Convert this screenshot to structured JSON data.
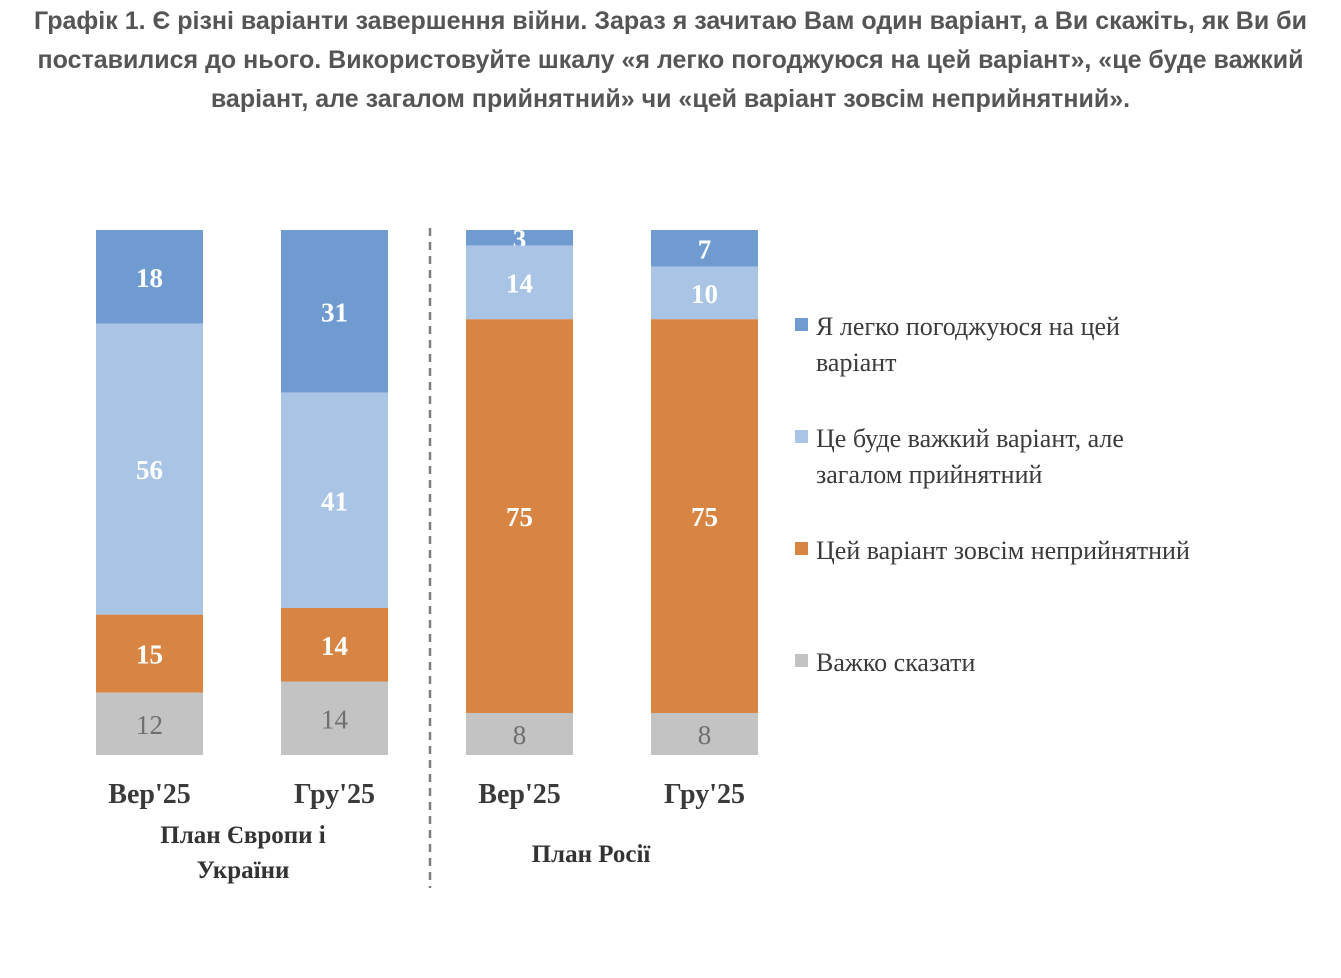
{
  "title": "Графік 1. Є різні варіанти завершення війни. Зараз я зачитаю Вам один варіант, а Ви скажіть, як Ви би поставилися до нього. Використовуйте шкалу «я легко погоджуюся на цей варіант», «це буде важкий варіант, але загалом прийнятний» чи «цей варіант зовсім неприйнятний».",
  "chart_data": {
    "type": "bar",
    "stacked": true,
    "ylim": [
      0,
      100
    ],
    "grid": false,
    "legend_position": "right",
    "groups": [
      {
        "label_lines": [
          "План Європи і",
          "України"
        ],
        "categories": [
          "Вер'25",
          "Гру'25"
        ]
      },
      {
        "label_lines": [
          "План Росії"
        ],
        "categories": [
          "Вер'25",
          "Гру'25"
        ]
      }
    ],
    "categories": [
      "Вер'25",
      "Гру'25",
      "Вер'25",
      "Гру'25"
    ],
    "series": [
      {
        "name": "Я легко погоджуюся на цей варіант",
        "legend_lines": [
          "Я легко погоджуюся на цей",
          "варіант"
        ],
        "color": "#6f9bd1",
        "label_color": "white",
        "values": [
          18,
          31,
          3,
          7
        ]
      },
      {
        "name": "Це буде важкий варіант, але загалом прийнятний",
        "legend_lines": [
          "Це буде важкий варіант, але",
          "загалом прийнятний"
        ],
        "color": "#a9c4e4",
        "label_color": "white",
        "values": [
          56,
          41,
          14,
          10
        ]
      },
      {
        "name": "Цей варіант зовсім неприйнятний",
        "legend_lines": [
          "Цей варіант зовсім неприйнятний"
        ],
        "color": "#d88442",
        "label_color": "white",
        "values": [
          15,
          14,
          75,
          75
        ]
      },
      {
        "name": "Важко сказати",
        "legend_lines": [
          "Важко сказати"
        ],
        "color": "#c3c3c3",
        "label_color": "grey",
        "values": [
          12,
          14,
          8,
          8
        ]
      }
    ]
  }
}
